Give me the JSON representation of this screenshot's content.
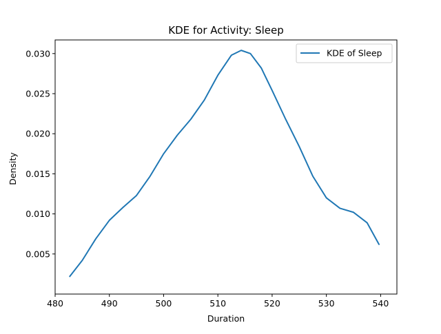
{
  "chart_data": {
    "type": "line",
    "title": "KDE for Activity: Sleep",
    "xlabel": "Duration",
    "ylabel": "Density",
    "xlim": [
      480,
      543
    ],
    "ylim": [
      0.0,
      0.0317
    ],
    "xticks": [
      480,
      490,
      500,
      510,
      520,
      530,
      540
    ],
    "yticks": [
      0.005,
      0.01,
      0.015,
      0.02,
      0.025,
      0.03
    ],
    "xtick_labels": [
      "480",
      "490",
      "500",
      "510",
      "520",
      "530",
      "540"
    ],
    "ytick_labels": [
      "0.005",
      "0.010",
      "0.015",
      "0.020",
      "0.025",
      "0.030"
    ],
    "grid": false,
    "legend_position": "top-right",
    "series": [
      {
        "name": "KDE of Sleep",
        "color": "#1f77b4",
        "x": [
          482.7,
          485,
          487.5,
          490,
          492.5,
          495,
          497.5,
          500,
          502.5,
          505,
          507.5,
          510,
          512.5,
          514.3,
          516,
          518,
          520,
          522.5,
          525,
          527.5,
          530,
          532.5,
          535,
          537.5,
          539.7
        ],
        "y": [
          0.0022,
          0.0042,
          0.0069,
          0.0092,
          0.0108,
          0.0123,
          0.0147,
          0.0175,
          0.0198,
          0.0218,
          0.0242,
          0.0273,
          0.0298,
          0.0304,
          0.03,
          0.0282,
          0.0254,
          0.0218,
          0.0184,
          0.0147,
          0.012,
          0.0107,
          0.0102,
          0.0089,
          0.0062
        ]
      }
    ]
  }
}
